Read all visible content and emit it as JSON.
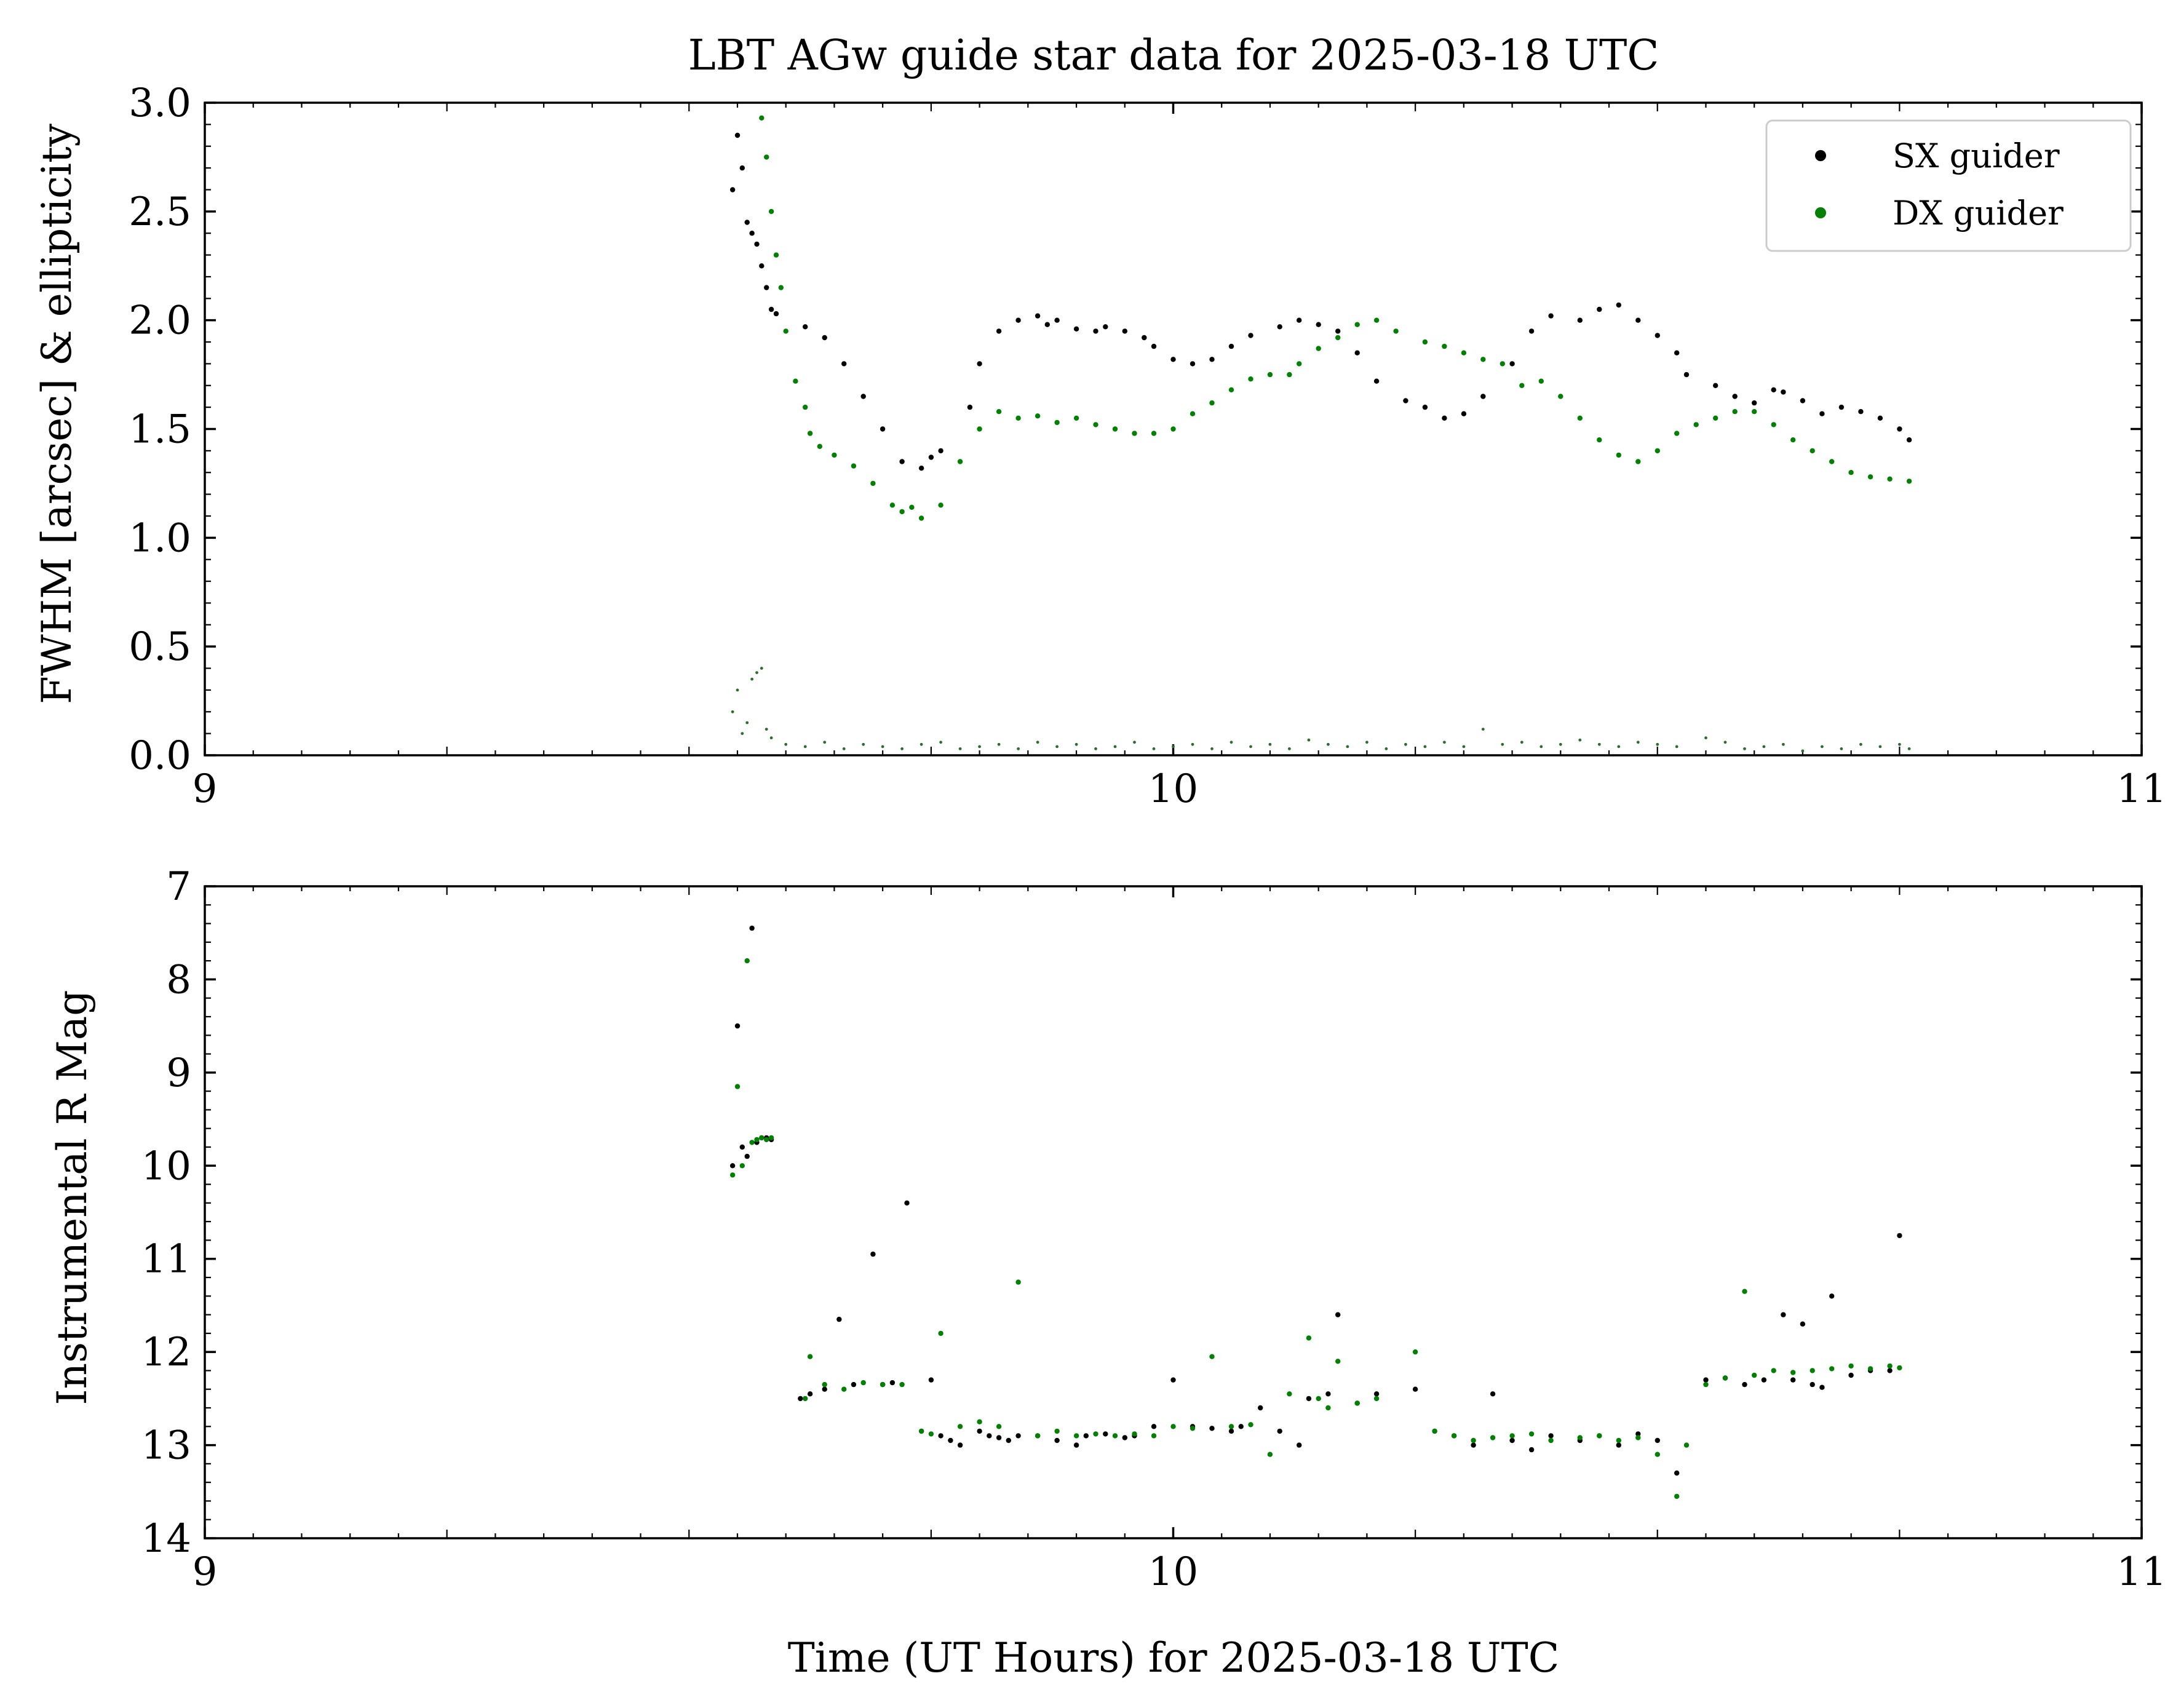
{
  "chart_data": [
    {
      "type": "scatter",
      "title": "LBT AGw guide star data for 2025-03-18 UTC",
      "xlabel": "",
      "ylabel": "FWHM [arcsec] & ellipticity",
      "xlim": [
        9,
        11
      ],
      "ylim": [
        0,
        3
      ],
      "x_ticks": [
        "9",
        "10",
        "11"
      ],
      "y_ticks": [
        "0.0",
        "0.5",
        "1.0",
        "1.5",
        "2.0",
        "2.5",
        "3.0"
      ],
      "legend": {
        "placement": "top-right",
        "entries": [
          "SX guider",
          "DX guider"
        ]
      },
      "grid": false,
      "series": [
        {
          "name": "SX guider",
          "color": "#000000",
          "marker_size": "small",
          "x": [
            9.545,
            9.55,
            9.555,
            9.56,
            9.565,
            9.57,
            9.575,
            9.58,
            9.585,
            9.59,
            9.62,
            9.64,
            9.66,
            9.68,
            9.7,
            9.72,
            9.74,
            9.75,
            9.76,
            9.79,
            9.8,
            9.82,
            9.84,
            9.86,
            9.87,
            9.88,
            9.9,
            9.92,
            9.93,
            9.95,
            9.97,
            9.98,
            10.0,
            10.02,
            10.04,
            10.06,
            10.08,
            10.11,
            10.13,
            10.15,
            10.17,
            10.19,
            10.21,
            10.24,
            10.26,
            10.28,
            10.3,
            10.32,
            10.35,
            10.37,
            10.39,
            10.42,
            10.44,
            10.46,
            10.48,
            10.5,
            10.52,
            10.53,
            10.56,
            10.58,
            10.6,
            10.62,
            10.63,
            10.65,
            10.67,
            10.69,
            10.71,
            10.73,
            10.75,
            10.76
          ],
          "y": [
            2.6,
            2.85,
            2.7,
            2.45,
            2.4,
            2.35,
            2.25,
            2.15,
            2.05,
            2.03,
            1.97,
            1.92,
            1.8,
            1.65,
            1.5,
            1.35,
            1.32,
            1.37,
            1.4,
            1.6,
            1.8,
            1.95,
            2.0,
            2.02,
            1.98,
            2.0,
            1.96,
            1.95,
            1.97,
            1.95,
            1.92,
            1.88,
            1.82,
            1.8,
            1.82,
            1.88,
            1.93,
            1.97,
            2.0,
            1.98,
            1.95,
            1.85,
            1.72,
            1.63,
            1.6,
            1.55,
            1.57,
            1.65,
            1.8,
            1.95,
            2.02,
            2.0,
            2.05,
            2.07,
            2.0,
            1.93,
            1.85,
            1.75,
            1.7,
            1.65,
            1.62,
            1.68,
            1.67,
            1.63,
            1.57,
            1.6,
            1.58,
            1.55,
            1.5,
            1.45
          ]
        },
        {
          "name": "DX guider",
          "color": "#008000",
          "marker_size": "small",
          "x": [
            9.575,
            9.58,
            9.585,
            9.59,
            9.595,
            9.6,
            9.61,
            9.62,
            9.625,
            9.635,
            9.65,
            9.67,
            9.69,
            9.71,
            9.72,
            9.73,
            9.74,
            9.76,
            9.78,
            9.8,
            9.82,
            9.84,
            9.86,
            9.88,
            9.9,
            9.92,
            9.94,
            9.96,
            9.98,
            10.0,
            10.02,
            10.04,
            10.06,
            10.08,
            10.1,
            10.12,
            10.13,
            10.15,
            10.17,
            10.19,
            10.21,
            10.23,
            10.26,
            10.28,
            10.3,
            10.32,
            10.34,
            10.36,
            10.38,
            10.4,
            10.42,
            10.44,
            10.46,
            10.48,
            10.5,
            10.52,
            10.54,
            10.56,
            10.58,
            10.6,
            10.62,
            10.64,
            10.66,
            10.68,
            10.7,
            10.72,
            10.74,
            10.76
          ],
          "y": [
            2.93,
            2.75,
            2.5,
            2.3,
            2.15,
            1.95,
            1.72,
            1.6,
            1.48,
            1.42,
            1.38,
            1.33,
            1.25,
            1.15,
            1.12,
            1.14,
            1.09,
            1.15,
            1.35,
            1.5,
            1.58,
            1.55,
            1.56,
            1.53,
            1.55,
            1.52,
            1.5,
            1.48,
            1.48,
            1.5,
            1.57,
            1.62,
            1.68,
            1.73,
            1.75,
            1.75,
            1.8,
            1.87,
            1.92,
            1.98,
            2.0,
            1.95,
            1.9,
            1.88,
            1.85,
            1.82,
            1.8,
            1.7,
            1.72,
            1.65,
            1.55,
            1.45,
            1.38,
            1.35,
            1.4,
            1.48,
            1.52,
            1.55,
            1.58,
            1.58,
            1.52,
            1.45,
            1.4,
            1.35,
            1.3,
            1.28,
            1.27,
            1.26
          ]
        },
        {
          "name": "",
          "color": "#2e6b2e",
          "marker_size": "tiny",
          "x": [
            9.545,
            9.55,
            9.555,
            9.56,
            9.565,
            9.57,
            9.575,
            9.58,
            9.585,
            9.6,
            9.62,
            9.64,
            9.66,
            9.68,
            9.7,
            9.72,
            9.74,
            9.76,
            9.78,
            9.8,
            9.82,
            9.84,
            9.86,
            9.88,
            9.9,
            9.92,
            9.94,
            9.96,
            9.98,
            10.0,
            10.02,
            10.04,
            10.06,
            10.08,
            10.1,
            10.12,
            10.14,
            10.16,
            10.18,
            10.2,
            10.22,
            10.24,
            10.26,
            10.28,
            10.3,
            10.32,
            10.34,
            10.36,
            10.38,
            10.4,
            10.42,
            10.44,
            10.46,
            10.48,
            10.5,
            10.52,
            10.55,
            10.57,
            10.59,
            10.61,
            10.63,
            10.65,
            10.67,
            10.69,
            10.71,
            10.73,
            10.75,
            10.76
          ],
          "y": [
            0.2,
            0.3,
            0.1,
            0.15,
            0.35,
            0.38,
            0.4,
            0.12,
            0.08,
            0.05,
            0.04,
            0.06,
            0.03,
            0.05,
            0.04,
            0.03,
            0.05,
            0.06,
            0.03,
            0.04,
            0.05,
            0.03,
            0.06,
            0.04,
            0.05,
            0.03,
            0.04,
            0.06,
            0.03,
            0.04,
            0.05,
            0.03,
            0.06,
            0.04,
            0.05,
            0.03,
            0.07,
            0.05,
            0.04,
            0.06,
            0.03,
            0.05,
            0.04,
            0.06,
            0.04,
            0.12,
            0.05,
            0.06,
            0.04,
            0.05,
            0.07,
            0.05,
            0.04,
            0.06,
            0.05,
            0.04,
            0.08,
            0.06,
            0.03,
            0.04,
            0.05,
            0.02,
            0.04,
            0.03,
            0.05,
            0.04,
            0.05,
            0.03
          ]
        }
      ]
    },
    {
      "type": "scatter",
      "title": "",
      "xlabel": "Time (UT Hours) for 2025-03-18 UTC",
      "ylabel": "Instrumental R Mag",
      "xlim": [
        9,
        11
      ],
      "ylim": [
        14,
        7
      ],
      "y_inverted": true,
      "x_ticks": [
        "9",
        "10",
        "11"
      ],
      "y_ticks": [
        "7",
        "8",
        "9",
        "10",
        "11",
        "12",
        "13",
        "14"
      ],
      "grid": false,
      "series": [
        {
          "name": "SX guider",
          "color": "#000000",
          "marker_size": "small",
          "x": [
            9.545,
            9.55,
            9.555,
            9.56,
            9.565,
            9.57,
            9.575,
            9.58,
            9.585,
            9.615,
            9.625,
            9.64,
            9.655,
            9.67,
            9.69,
            9.7,
            9.71,
            9.725,
            9.74,
            9.75,
            9.76,
            9.77,
            9.78,
            9.8,
            9.81,
            9.82,
            9.83,
            9.84,
            9.86,
            9.88,
            9.9,
            9.91,
            9.93,
            9.95,
            9.96,
            9.98,
            10.0,
            10.02,
            10.04,
            10.06,
            10.07,
            10.09,
            10.11,
            10.13,
            10.14,
            10.16,
            10.17,
            10.19,
            10.21,
            10.25,
            10.27,
            10.29,
            10.31,
            10.33,
            10.35,
            10.37,
            10.39,
            10.42,
            10.44,
            10.46,
            10.48,
            10.5,
            10.52,
            10.55,
            10.57,
            10.59,
            10.61,
            10.63,
            10.64,
            10.65,
            10.66,
            10.67,
            10.68,
            10.7,
            10.72,
            10.74,
            10.75
          ],
          "y": [
            10.0,
            8.5,
            9.8,
            9.9,
            7.45,
            9.75,
            9.7,
            9.7,
            9.72,
            12.5,
            12.45,
            12.4,
            11.65,
            12.35,
            10.95,
            12.35,
            12.33,
            10.4,
            12.85,
            12.3,
            12.9,
            12.95,
            13.0,
            12.85,
            12.9,
            12.92,
            12.95,
            12.9,
            12.9,
            12.95,
            13.0,
            12.9,
            12.88,
            12.92,
            12.9,
            12.8,
            12.3,
            12.8,
            12.82,
            12.85,
            12.8,
            12.6,
            12.85,
            13.0,
            12.5,
            12.45,
            11.6,
            12.55,
            12.45,
            12.4,
            12.85,
            12.9,
            13.0,
            12.45,
            12.95,
            13.05,
            12.9,
            12.95,
            12.9,
            13.0,
            12.88,
            12.95,
            13.3,
            12.3,
            12.28,
            12.35,
            12.3,
            11.6,
            12.3,
            11.7,
            12.35,
            12.38,
            11.4,
            12.25,
            12.2,
            12.2,
            10.75
          ]
        },
        {
          "name": "DX guider",
          "color": "#008000",
          "marker_size": "small",
          "x": [
            9.545,
            9.55,
            9.555,
            9.56,
            9.565,
            9.57,
            9.575,
            9.58,
            9.585,
            9.62,
            9.625,
            9.64,
            9.66,
            9.68,
            9.7,
            9.72,
            9.74,
            9.75,
            9.76,
            9.78,
            9.8,
            9.82,
            9.84,
            9.86,
            9.88,
            9.9,
            9.92,
            9.94,
            9.96,
            9.98,
            10.0,
            10.02,
            10.04,
            10.06,
            10.08,
            10.1,
            10.12,
            10.14,
            10.15,
            10.16,
            10.17,
            10.19,
            10.21,
            10.25,
            10.27,
            10.29,
            10.31,
            10.33,
            10.35,
            10.37,
            10.39,
            10.42,
            10.44,
            10.46,
            10.48,
            10.5,
            10.52,
            10.53,
            10.55,
            10.57,
            10.59,
            10.6,
            10.62,
            10.64,
            10.66,
            10.68,
            10.7,
            10.72,
            10.74,
            10.75
          ],
          "y": [
            10.1,
            9.15,
            10.0,
            7.8,
            9.75,
            9.72,
            9.7,
            9.72,
            9.7,
            12.5,
            12.05,
            12.35,
            12.4,
            12.33,
            12.35,
            12.35,
            12.85,
            12.88,
            11.8,
            12.8,
            12.75,
            12.8,
            11.25,
            12.9,
            12.85,
            12.9,
            12.88,
            12.9,
            12.88,
            12.9,
            12.8,
            12.82,
            12.05,
            12.8,
            12.78,
            13.1,
            12.45,
            11.85,
            12.5,
            12.6,
            12.1,
            12.55,
            12.5,
            12.0,
            12.85,
            12.9,
            12.95,
            12.92,
            12.9,
            12.88,
            12.95,
            12.92,
            12.9,
            12.95,
            12.92,
            13.1,
            13.55,
            13.0,
            12.35,
            12.28,
            11.35,
            12.25,
            12.2,
            12.22,
            12.2,
            12.18,
            12.15,
            12.18,
            12.15,
            12.17
          ]
        }
      ]
    }
  ]
}
